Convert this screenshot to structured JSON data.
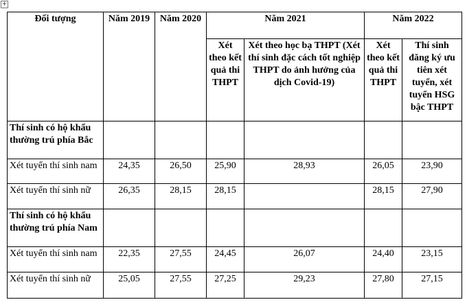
{
  "table": {
    "header": [
      "Đối tượng",
      "Năm 2019",
      "Năm 2020",
      "Năm 2021",
      "Năm 2022"
    ],
    "subheader": [
      "Xét theo kết quả thi THPT",
      "Xét theo học bạ THPT (Xét thí sinh đặc cách tốt nghiệp THPT do ảnh hưởng của dịch Covid-19)",
      "Xét theo kết quả thi THPT",
      "Thí sinh đăng ký ưu tiên xét tuyển, xét tuyển HSG bậc THPT"
    ],
    "rows": [
      {
        "label": "Thí sinh có hộ khẩu thường trú phía Bắc",
        "section": true
      },
      {
        "label": "Xét tuyển thí sinh nam",
        "cells": [
          "24,35",
          "26,50",
          "25,90",
          "28,93",
          "26,05",
          "23,90"
        ]
      },
      {
        "label": "Xét tuyển thí sinh nữ",
        "cells": [
          "26,35",
          "28,15",
          "28,15",
          null,
          "28,15",
          "27,90"
        ]
      },
      {
        "label": "Thí sinh có hộ khẩu thường trú phía Nam",
        "section": true
      },
      {
        "label": "Xét tuyển thí sinh nam",
        "cells": [
          "22,35",
          "27,55",
          "24,45",
          "26,07",
          "24,40",
          "23,15"
        ]
      },
      {
        "label": "Xét tuyển thí sinh nữ",
        "cells": [
          "25,05",
          "27,55",
          "27,25",
          "29,23",
          "27,80",
          "27,15"
        ]
      }
    ]
  }
}
